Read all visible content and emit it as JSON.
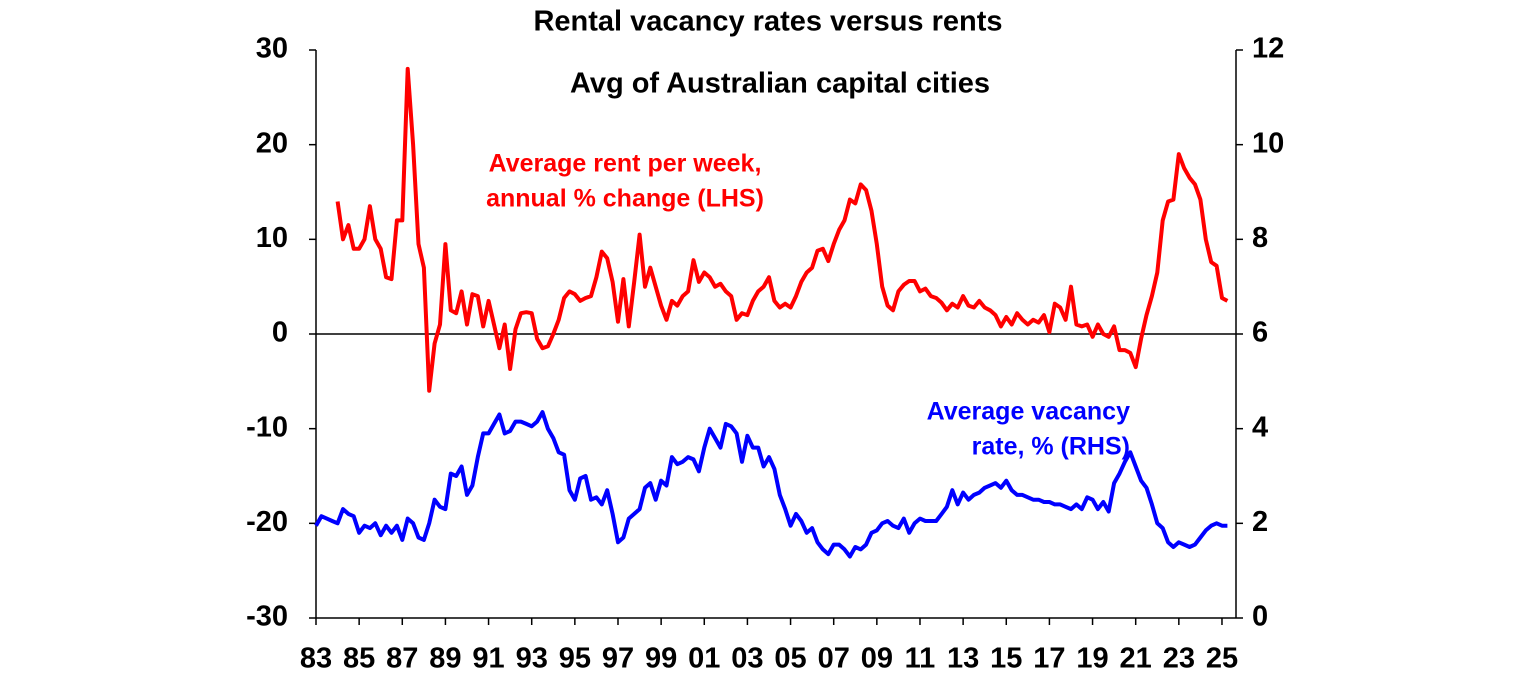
{
  "chart_data": {
    "type": "line",
    "title": "Rental vacancy rates versus rents",
    "subtitle": "Avg of Australian capital cities",
    "x": [
      1983,
      1983.25,
      1983.5,
      1983.75,
      1984,
      1984.25,
      1984.5,
      1984.75,
      1985,
      1985.25,
      1985.5,
      1985.75,
      1986,
      1986.25,
      1986.5,
      1986.75,
      1987,
      1987.25,
      1987.5,
      1987.75,
      1988,
      1988.25,
      1988.5,
      1988.75,
      1989,
      1989.25,
      1989.5,
      1989.75,
      1990,
      1990.25,
      1990.5,
      1990.75,
      1991,
      1991.25,
      1991.5,
      1991.75,
      1992,
      1992.25,
      1992.5,
      1992.75,
      1993,
      1993.25,
      1993.5,
      1993.75,
      1994,
      1994.25,
      1994.5,
      1994.75,
      1995,
      1995.25,
      1995.5,
      1995.75,
      1996,
      1996.25,
      1996.5,
      1996.75,
      1997,
      1997.25,
      1997.5,
      1997.75,
      1998,
      1998.25,
      1998.5,
      1998.75,
      1999,
      1999.25,
      1999.5,
      1999.75,
      2000,
      2000.25,
      2000.5,
      2000.75,
      2001,
      2001.25,
      2001.5,
      2001.75,
      2002,
      2002.25,
      2002.5,
      2002.75,
      2003,
      2003.25,
      2003.5,
      2003.75,
      2004,
      2004.25,
      2004.5,
      2004.75,
      2005,
      2005.25,
      2005.5,
      2005.75,
      2006,
      2006.25,
      2006.5,
      2006.75,
      2007,
      2007.25,
      2007.5,
      2007.75,
      2008,
      2008.25,
      2008.5,
      2008.75,
      2009,
      2009.25,
      2009.5,
      2009.75,
      2010,
      2010.25,
      2010.5,
      2010.75,
      2011,
      2011.25,
      2011.5,
      2011.75,
      2012,
      2012.25,
      2012.5,
      2012.75,
      2013,
      2013.25,
      2013.5,
      2013.75,
      2014,
      2014.25,
      2014.5,
      2014.75,
      2015,
      2015.25,
      2015.5,
      2015.75,
      2016,
      2016.25,
      2016.5,
      2016.75,
      2017,
      2017.25,
      2017.5,
      2017.75,
      2018,
      2018.25,
      2018.5,
      2018.75,
      2019,
      2019.25,
      2019.5,
      2019.75,
      2020,
      2020.25,
      2020.5,
      2020.75,
      2021,
      2021.25,
      2021.5,
      2021.75,
      2022,
      2022.25,
      2022.5,
      2022.75,
      2023,
      2023.25,
      2023.5,
      2023.75,
      2024,
      2024.25,
      2024.5,
      2024.75,
      2025,
      2025.25
    ],
    "series": [
      {
        "name": [
          "Average rent per week,",
          "annual % change (LHS)"
        ],
        "color": "#ff0000",
        "axis": "y",
        "values": [
          null,
          null,
          null,
          null,
          14,
          10,
          11.5,
          9,
          9,
          10,
          13.5,
          10,
          9,
          6,
          5.8,
          12,
          12,
          28,
          20,
          9.5,
          7,
          -6,
          -1,
          1,
          9.5,
          2.5,
          2.2,
          4.5,
          1,
          4.2,
          4,
          0.8,
          3.5,
          1,
          -1.5,
          1,
          -3.7,
          0.5,
          2.2,
          2.3,
          2.2,
          -0.5,
          -1.5,
          -1.3,
          0,
          1.5,
          3.8,
          4.5,
          4.2,
          3.5,
          3.8,
          4,
          6,
          8.7,
          8,
          5.5,
          1.3,
          5.8,
          0.8,
          5.5,
          10.5,
          5,
          7,
          5,
          3,
          1.5,
          3.5,
          3,
          4,
          4.5,
          7.8,
          5.5,
          6.5,
          6,
          5,
          5.3,
          4.5,
          4,
          1.5,
          2.2,
          2,
          3.5,
          4.5,
          5,
          6,
          3.5,
          2.8,
          3.2,
          2.8,
          4,
          5.5,
          6.5,
          7,
          8.8,
          9,
          7.7,
          9.5,
          11,
          12,
          14.2,
          13.8,
          15.8,
          15.2,
          13,
          9.5,
          5,
          3,
          2.5,
          4.5,
          5.2,
          5.6,
          5.6,
          4.5,
          4.8,
          4,
          3.8,
          3.3,
          2.5,
          3.2,
          2.8,
          4,
          3,
          2.8,
          3.5,
          2.8,
          2.5,
          2,
          0.8,
          1.8,
          1,
          2.2,
          1.5,
          1,
          1.5,
          1.2,
          2,
          0.2,
          3.2,
          2.8,
          1.5,
          5,
          1,
          0.8,
          1,
          -0.3,
          1,
          0,
          -0.3,
          0.8,
          -1.7,
          -1.7,
          -2,
          -3.5,
          -0.5,
          2,
          4,
          6.5,
          12,
          14,
          14.2,
          19,
          17.5,
          16.5,
          15.8,
          14.2,
          10,
          7.6,
          7.2,
          3.8,
          3.5
        ]
      },
      {
        "name": [
          "Average vacancy",
          "rate, % (RHS)"
        ],
        "color": "#0000ff",
        "axis": "y2",
        "values": [
          1.95,
          2.15,
          2.1,
          2.05,
          2.0,
          2.3,
          2.2,
          2.15,
          1.8,
          1.95,
          1.9,
          2.0,
          1.75,
          1.95,
          1.8,
          1.95,
          1.65,
          2.1,
          2.0,
          1.7,
          1.65,
          2.0,
          2.5,
          2.35,
          2.3,
          3.05,
          3.0,
          3.2,
          2.6,
          2.8,
          3.4,
          3.9,
          3.9,
          4.1,
          4.3,
          3.9,
          3.95,
          4.15,
          4.15,
          4.1,
          4.05,
          4.15,
          4.35,
          4.0,
          3.8,
          3.5,
          3.45,
          2.7,
          2.5,
          2.95,
          3.0,
          2.5,
          2.55,
          2.4,
          2.7,
          2.2,
          1.6,
          1.7,
          2.1,
          2.2,
          2.3,
          2.75,
          2.85,
          2.5,
          2.9,
          2.8,
          3.4,
          3.25,
          3.3,
          3.4,
          3.35,
          3.1,
          3.6,
          4.0,
          3.8,
          3.6,
          4.1,
          4.05,
          3.9,
          3.3,
          3.85,
          3.6,
          3.6,
          3.2,
          3.4,
          3.15,
          2.6,
          2.3,
          1.95,
          2.2,
          2.05,
          1.8,
          1.9,
          1.6,
          1.45,
          1.35,
          1.55,
          1.55,
          1.45,
          1.3,
          1.5,
          1.45,
          1.55,
          1.8,
          1.85,
          2.0,
          2.05,
          1.95,
          1.9,
          2.1,
          1.8,
          2.0,
          2.1,
          2.05,
          2.05,
          2.05,
          2.2,
          2.35,
          2.7,
          2.4,
          2.65,
          2.5,
          2.6,
          2.65,
          2.75,
          2.8,
          2.85,
          2.75,
          2.9,
          2.7,
          2.6,
          2.6,
          2.55,
          2.5,
          2.5,
          2.45,
          2.45,
          2.4,
          2.4,
          2.35,
          2.3,
          2.4,
          2.3,
          2.55,
          2.5,
          2.3,
          2.45,
          2.25,
          2.85,
          3.05,
          3.3,
          3.5,
          3.2,
          2.9,
          2.75,
          2.4,
          2.0,
          1.9,
          1.6,
          1.5,
          1.6,
          1.55,
          1.5,
          1.55,
          1.7,
          1.85,
          1.95,
          2.0,
          1.95,
          1.95
        ]
      }
    ],
    "xlim": [
      1983,
      2025.65
    ],
    "xticks": [
      {
        "value": 1983,
        "label": "83"
      },
      {
        "value": 1985,
        "label": "85"
      },
      {
        "value": 1987,
        "label": "87"
      },
      {
        "value": 1989,
        "label": "89"
      },
      {
        "value": 1991,
        "label": "91"
      },
      {
        "value": 1993,
        "label": "93"
      },
      {
        "value": 1995,
        "label": "95"
      },
      {
        "value": 1997,
        "label": "97"
      },
      {
        "value": 1999,
        "label": "99"
      },
      {
        "value": 2001,
        "label": "01"
      },
      {
        "value": 2003,
        "label": "03"
      },
      {
        "value": 2005,
        "label": "05"
      },
      {
        "value": 2007,
        "label": "07"
      },
      {
        "value": 2009,
        "label": "09"
      },
      {
        "value": 2011,
        "label": "11"
      },
      {
        "value": 2013,
        "label": "13"
      },
      {
        "value": 2015,
        "label": "15"
      },
      {
        "value": 2017,
        "label": "17"
      },
      {
        "value": 2019,
        "label": "19"
      },
      {
        "value": 2021,
        "label": "21"
      },
      {
        "value": 2023,
        "label": "23"
      },
      {
        "value": 2025,
        "label": "25"
      }
    ],
    "ylim": [
      -30,
      30
    ],
    "yticks": [
      -30,
      -20,
      -10,
      0,
      10,
      20,
      30
    ],
    "y2lim": [
      0,
      12
    ],
    "y2ticks": [
      0,
      2,
      4,
      6,
      8,
      10,
      12
    ]
  }
}
